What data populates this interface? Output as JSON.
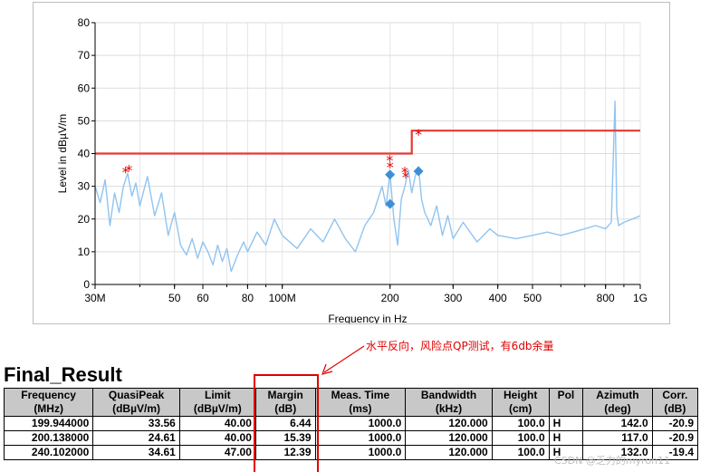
{
  "chart_data": {
    "type": "line",
    "xlabel": "Frequency in Hz",
    "ylabel": "Level in dBµV/m",
    "x_scale": "log",
    "xlim": [
      30000000,
      1000000000
    ],
    "ylim": [
      0,
      80
    ],
    "grid": true,
    "x_tick_values": [
      30000000,
      50000000,
      60000000,
      80000000,
      100000000,
      200000000,
      300000000,
      400000000,
      500000000,
      800000000,
      1000000000
    ],
    "x_tick_labels": [
      "30M",
      "50",
      "60",
      "80",
      "100M",
      "200",
      "300",
      "400",
      "500",
      "800",
      "1G"
    ],
    "y_ticks": [
      0,
      10,
      20,
      30,
      40,
      50,
      60,
      70,
      80
    ],
    "limit_line": {
      "x": [
        30000000,
        230000000,
        230000000,
        1000000000
      ],
      "y": [
        40,
        40,
        47,
        47
      ],
      "color": "#e53935"
    },
    "spectrum": {
      "color": "#90c4f0",
      "x": [
        30000000,
        31000000,
        32000000,
        33000000,
        34000000,
        35000000,
        36000000,
        37000000,
        38000000,
        39000000,
        40000000,
        42000000,
        44000000,
        46000000,
        48000000,
        50000000,
        52000000,
        54000000,
        56000000,
        58000000,
        60000000,
        62000000,
        64000000,
        66000000,
        68000000,
        70000000,
        72000000,
        75000000,
        78000000,
        80000000,
        85000000,
        90000000,
        95000000,
        100000000,
        110000000,
        120000000,
        130000000,
        140000000,
        150000000,
        160000000,
        170000000,
        180000000,
        190000000,
        195000000,
        199940000,
        205000000,
        210000000,
        215000000,
        220000000,
        225000000,
        230000000,
        235000000,
        240100000,
        245000000,
        250000000,
        260000000,
        270000000,
        280000000,
        290000000,
        300000000,
        320000000,
        350000000,
        380000000,
        400000000,
        450000000,
        500000000,
        550000000,
        600000000,
        650000000,
        700000000,
        750000000,
        800000000,
        830000000,
        850000000,
        860000000,
        870000000,
        900000000,
        950000000,
        1000000000
      ],
      "y": [
        30,
        25,
        32,
        18,
        28,
        22,
        30,
        34,
        27,
        31,
        24,
        33,
        21,
        28,
        15,
        22,
        12,
        9,
        14,
        8,
        13,
        10,
        6,
        12,
        7,
        11,
        4,
        9,
        13,
        10,
        16,
        12,
        20,
        15,
        11,
        17,
        13,
        20,
        14,
        10,
        18,
        22,
        30,
        24,
        34,
        20,
        12,
        26,
        30,
        35,
        28,
        33,
        36,
        26,
        22,
        18,
        24,
        15,
        21,
        14,
        19,
        13,
        17,
        15,
        14,
        15,
        16,
        15,
        16,
        17,
        18,
        17,
        19,
        56,
        22,
        18,
        19,
        20,
        21
      ]
    },
    "peak_markers": {
      "symbol": "*",
      "color": "#e00000",
      "points": [
        {
          "x": 36500000,
          "y": 34.5
        },
        {
          "x": 37300000,
          "y": 35
        },
        {
          "x": 199500000,
          "y": 38
        },
        {
          "x": 200000000,
          "y": 36
        },
        {
          "x": 220000000,
          "y": 34.5
        },
        {
          "x": 221000000,
          "y": 33
        },
        {
          "x": 240100000,
          "y": 46
        }
      ]
    },
    "qp_markers": {
      "symbol": "diamond",
      "color": "#3d8ed6",
      "points": [
        {
          "x": 199944000,
          "y": 33.56
        },
        {
          "x": 200138000,
          "y": 24.61
        },
        {
          "x": 240102000,
          "y": 34.61
        }
      ]
    }
  },
  "annotation": {
    "text": "水平反向，风险点QP测试，有6db余量",
    "color": "#e00000"
  },
  "result": {
    "title": "Final_Result",
    "columns": [
      {
        "name": "Frequency",
        "unit": "(MHz)"
      },
      {
        "name": "QuasiPeak",
        "unit": "(dBµV/m)"
      },
      {
        "name": "Limit",
        "unit": "(dBµV/m)"
      },
      {
        "name": "Margin",
        "unit": "(dB)"
      },
      {
        "name": "Meas. Time",
        "unit": "(ms)"
      },
      {
        "name": "Bandwidth",
        "unit": "(kHz)"
      },
      {
        "name": "Height",
        "unit": "(cm)"
      },
      {
        "name": "Pol",
        "unit": ""
      },
      {
        "name": "Azimuth",
        "unit": "(deg)"
      },
      {
        "name": "Corr.",
        "unit": "(dB)"
      }
    ],
    "rows": [
      [
        "199.944000",
        "33.56",
        "40.00",
        "6.44",
        "1000.0",
        "120.000",
        "100.0",
        "H",
        "142.0",
        "-20.9"
      ],
      [
        "200.138000",
        "24.61",
        "40.00",
        "15.39",
        "1000.0",
        "120.000",
        "100.0",
        "H",
        "117.0",
        "-20.9"
      ],
      [
        "240.102000",
        "34.61",
        "47.00",
        "12.39",
        "1000.0",
        "120.000",
        "100.0",
        "H",
        "132.0",
        "-19.4"
      ]
    ]
  },
  "watermark": {
    "text": "CSDN @乏力的myron11"
  }
}
